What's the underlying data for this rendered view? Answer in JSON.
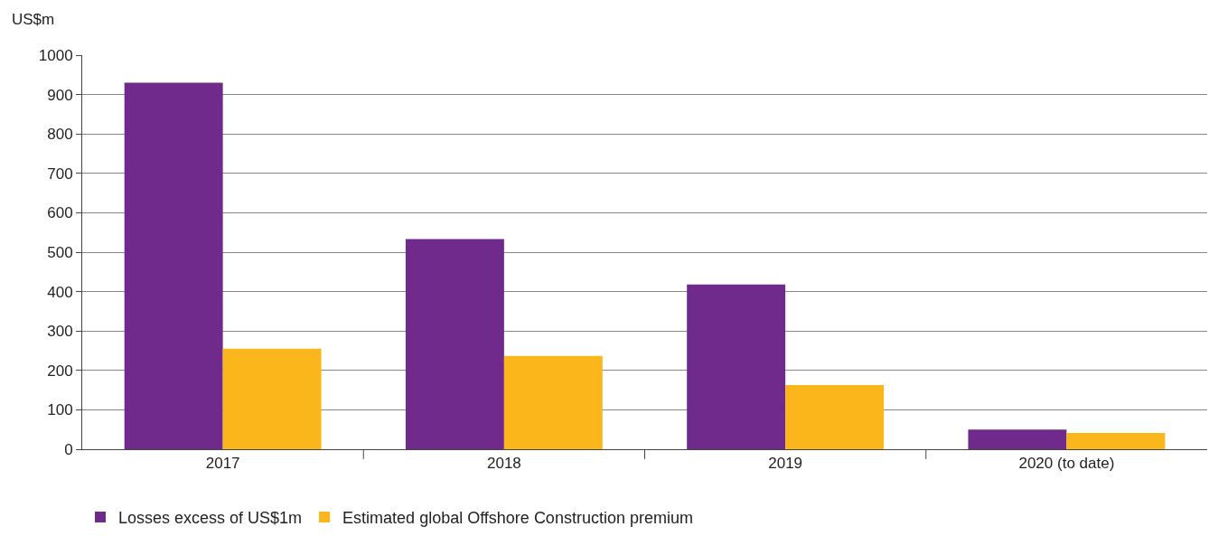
{
  "chart_data": {
    "type": "bar",
    "ylabel": "US$m",
    "categories": [
      "2017",
      "2018",
      "2019",
      "2020 (to date)"
    ],
    "series": [
      {
        "name": "Losses excess of US$1m",
        "color": "#6f2a8c",
        "values": [
          930,
          533,
          418,
          50
        ]
      },
      {
        "name": "Estimated global Offshore Construction premium",
        "color": "#fbb61b",
        "values": [
          255,
          237,
          163,
          41
        ]
      }
    ],
    "ylim": [
      0,
      1000
    ],
    "yticks": [
      0,
      100,
      200,
      300,
      400,
      500,
      600,
      700,
      800,
      900,
      1000
    ],
    "grid": "y",
    "legend": "bottom left"
  }
}
